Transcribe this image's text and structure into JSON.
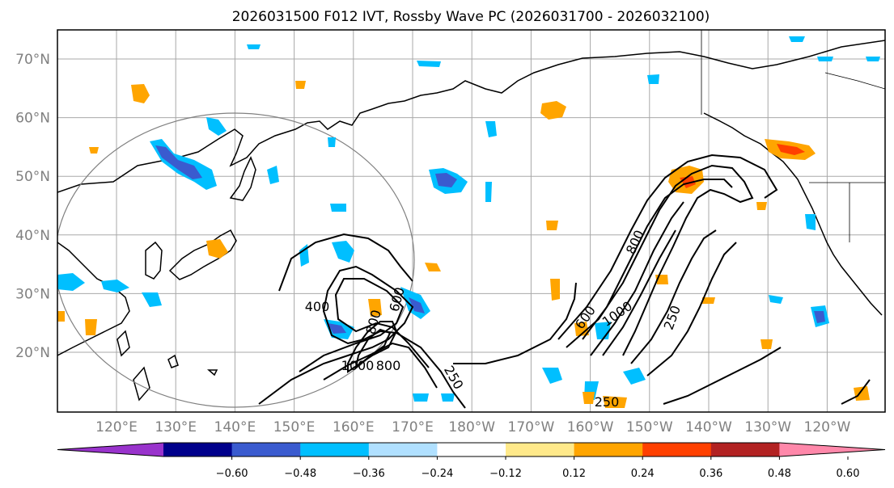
{
  "title": "2026031500 F012 IVT, Rossby Wave PC (2026031700 - 2026032100)",
  "latitudes": [
    {
      "label": "70°N"
    },
    {
      "label": "60°N"
    },
    {
      "label": "50°N"
    },
    {
      "label": "40°N"
    },
    {
      "label": "30°N"
    },
    {
      "label": "20°N"
    }
  ],
  "longitudes": [
    {
      "label": "120°E"
    },
    {
      "label": "130°E"
    },
    {
      "label": "140°E"
    },
    {
      "label": "150°E"
    },
    {
      "label": "160°E"
    },
    {
      "label": "170°E"
    },
    {
      "label": "180°W"
    },
    {
      "label": "170°W"
    },
    {
      "label": "160°W"
    },
    {
      "label": "150°W"
    },
    {
      "label": "140°W"
    },
    {
      "label": "130°W"
    },
    {
      "label": "120°W"
    }
  ],
  "contour_labels": [
    {
      "text": "400"
    },
    {
      "text": "600"
    },
    {
      "text": "800"
    },
    {
      "text": "1000"
    },
    {
      "text": "800"
    },
    {
      "text": "250"
    },
    {
      "text": "800"
    },
    {
      "text": "600"
    },
    {
      "text": "1000"
    },
    {
      "text": "250"
    },
    {
      "text": "250"
    }
  ],
  "colorbar": {
    "colors": [
      "#9933cc",
      "#00008b",
      "#3a5bcf",
      "#00bfff",
      "#b0e0ff",
      "#ffffff",
      "#ffe98a",
      "#ffa500",
      "#ff4000",
      "#b22222",
      "#ff88aa"
    ],
    "ticks": [
      "−0.60",
      "−0.48",
      "−0.36",
      "−0.24",
      "−0.12",
      "0.12",
      "0.24",
      "0.36",
      "0.48",
      "0.60"
    ]
  }
}
